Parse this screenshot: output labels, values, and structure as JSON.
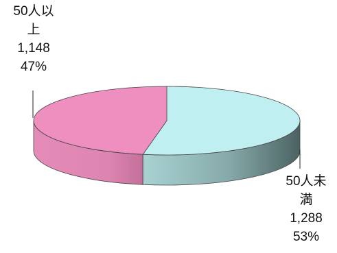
{
  "chart_data": {
    "type": "pie",
    "style": "3d-exploded-off",
    "slices": [
      {
        "label_line1": "50人未",
        "label_line2": "満",
        "value": 1288,
        "value_text": "1,288",
        "percent": 53,
        "percent_text": "53%",
        "color": "#bfeff0",
        "side_color": "#8fb5b5"
      },
      {
        "label_line1": "50人以",
        "label_line2": "上",
        "value": 1148,
        "value_text": "1,148",
        "percent": 47,
        "percent_text": "47%",
        "color": "#ef8fc0",
        "side_color": "#d07aa6"
      }
    ],
    "legend": "none"
  }
}
